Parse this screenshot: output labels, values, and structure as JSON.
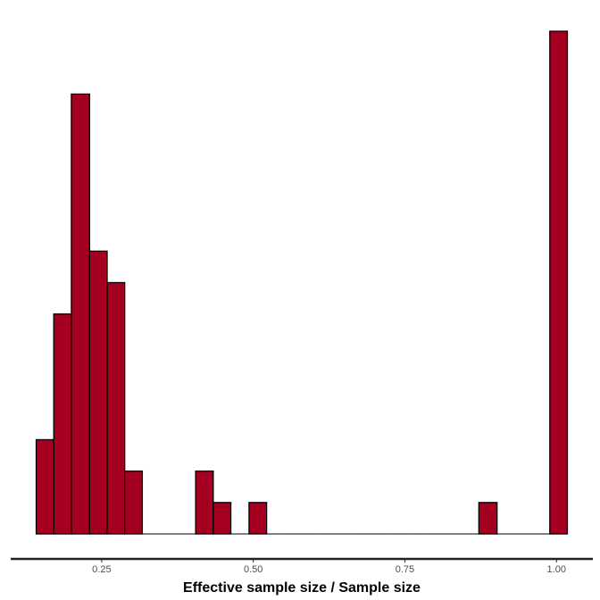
{
  "chart_data": {
    "type": "bar",
    "subtype": "histogram",
    "title": "",
    "xlabel": "Effective sample size / Sample size",
    "ylabel": "",
    "xlim": [
      0.1,
      1.06
    ],
    "ylim": [
      0,
      16.4
    ],
    "x_ticks": [
      0.25,
      0.5,
      0.75,
      1.0
    ],
    "x_tick_labels": [
      "0.25",
      "0.50",
      "0.75",
      "1.00"
    ],
    "y_axis_shown": false,
    "grid": false,
    "legend": "none",
    "bin_width": 0.0292,
    "bins": [
      {
        "x0": 0.142,
        "x1": 0.171,
        "count": 3
      },
      {
        "x0": 0.171,
        "x1": 0.2,
        "count": 7
      },
      {
        "x0": 0.2,
        "x1": 0.23,
        "count": 14
      },
      {
        "x0": 0.23,
        "x1": 0.259,
        "count": 9
      },
      {
        "x0": 0.259,
        "x1": 0.288,
        "count": 8
      },
      {
        "x0": 0.288,
        "x1": 0.317,
        "count": 2
      },
      {
        "x0": 0.317,
        "x1": 0.346,
        "count": 0
      },
      {
        "x0": 0.346,
        "x1": 0.376,
        "count": 0
      },
      {
        "x0": 0.376,
        "x1": 0.405,
        "count": 0
      },
      {
        "x0": 0.405,
        "x1": 0.434,
        "count": 2
      },
      {
        "x0": 0.434,
        "x1": 0.463,
        "count": 1
      },
      {
        "x0": 0.463,
        "x1": 0.493,
        "count": 0
      },
      {
        "x0": 0.493,
        "x1": 0.522,
        "count": 1
      },
      {
        "x0": 0.522,
        "x1": 0.551,
        "count": 0
      },
      {
        "x0": 0.551,
        "x1": 0.58,
        "count": 0
      },
      {
        "x0": 0.58,
        "x1": 0.609,
        "count": 0
      },
      {
        "x0": 0.609,
        "x1": 0.639,
        "count": 0
      },
      {
        "x0": 0.639,
        "x1": 0.668,
        "count": 0
      },
      {
        "x0": 0.668,
        "x1": 0.697,
        "count": 0
      },
      {
        "x0": 0.697,
        "x1": 0.726,
        "count": 0
      },
      {
        "x0": 0.726,
        "x1": 0.755,
        "count": 0
      },
      {
        "x0": 0.755,
        "x1": 0.785,
        "count": 0
      },
      {
        "x0": 0.785,
        "x1": 0.814,
        "count": 0
      },
      {
        "x0": 0.814,
        "x1": 0.843,
        "count": 0
      },
      {
        "x0": 0.843,
        "x1": 0.872,
        "count": 0
      },
      {
        "x0": 0.872,
        "x1": 0.902,
        "count": 1
      },
      {
        "x0": 0.902,
        "x1": 0.931,
        "count": 0
      },
      {
        "x0": 0.931,
        "x1": 0.96,
        "count": 0
      },
      {
        "x0": 0.96,
        "x1": 0.989,
        "count": 0
      },
      {
        "x0": 0.989,
        "x1": 1.018,
        "count": 16
      }
    ],
    "colors": {
      "bar_fill": "#a50021",
      "bar_outline": "#000000",
      "axis_line": "#222222",
      "tick_label": "#4d4d4d"
    }
  }
}
